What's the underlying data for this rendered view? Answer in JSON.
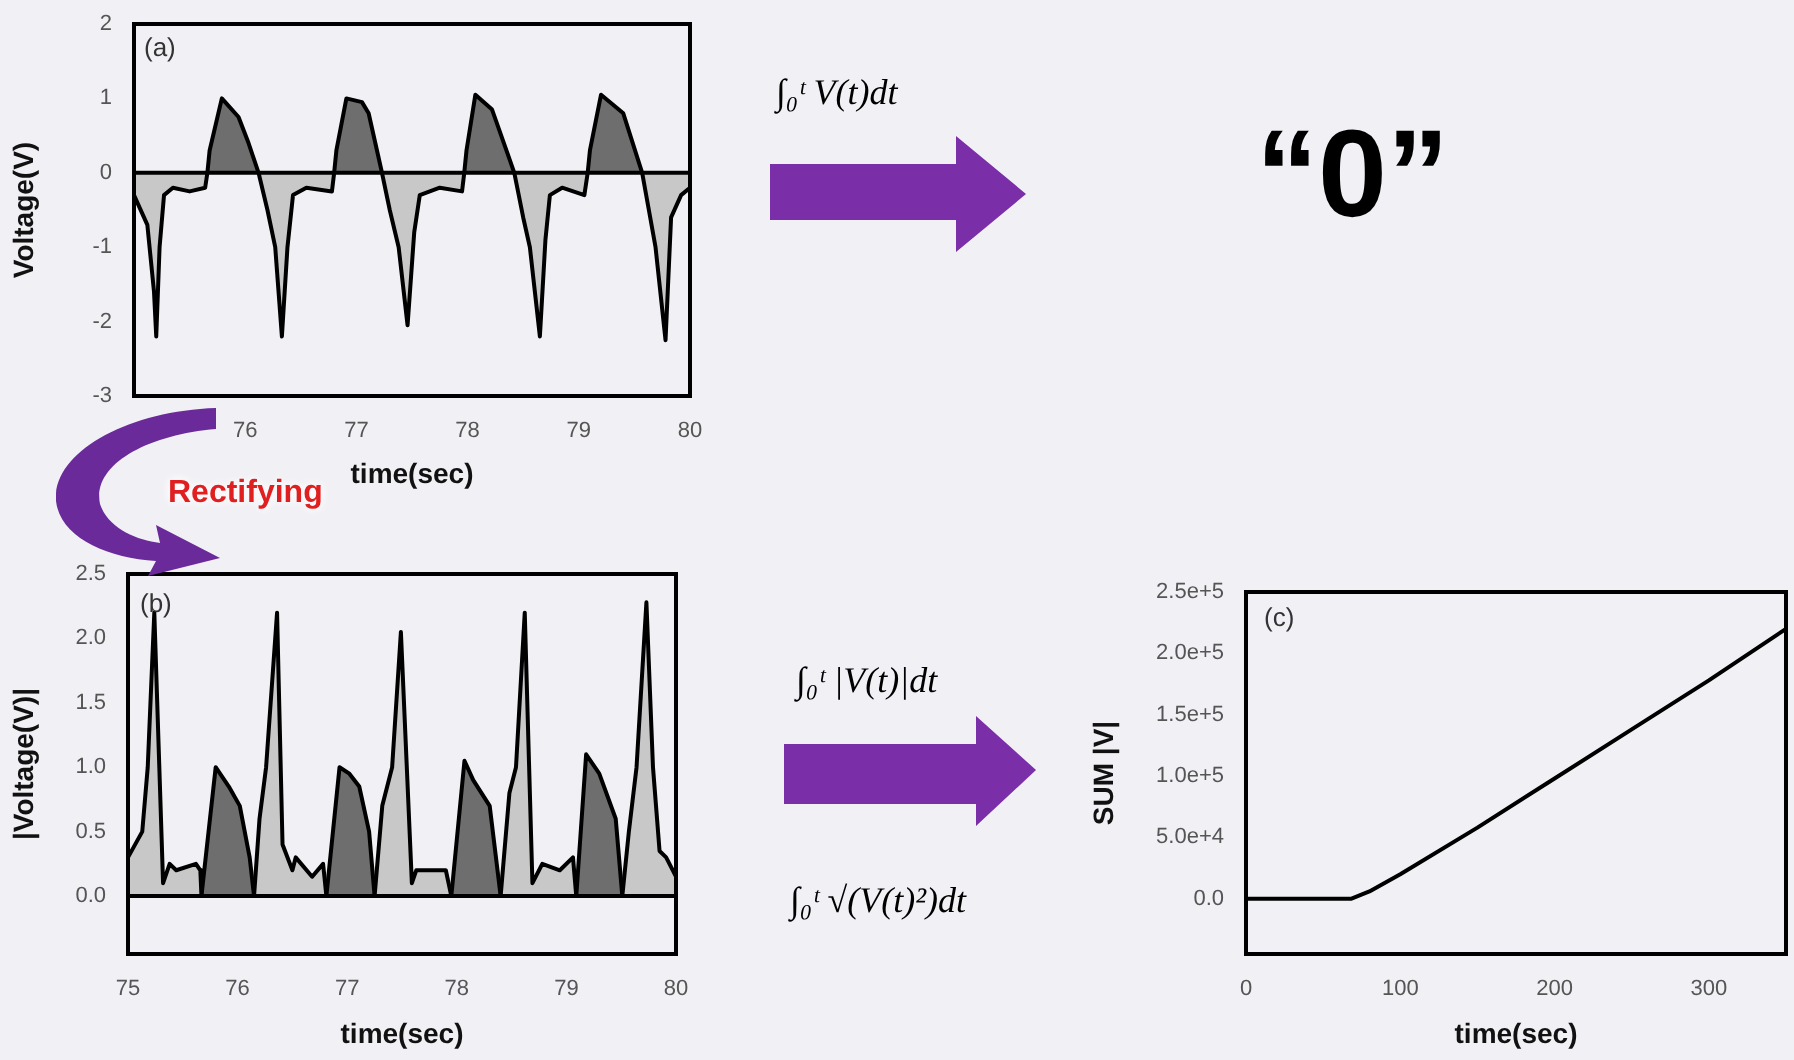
{
  "chart_data": [
    {
      "type": "area",
      "xlabel": "time(sec)",
      "ylabel": "Voltage(V)",
      "xlim": [
        75,
        80
      ],
      "xticks": [
        76,
        77,
        78,
        79,
        80
      ],
      "ylim": [
        -3,
        2
      ],
      "yticks": [
        -3,
        -2,
        -1,
        0,
        1,
        2
      ],
      "ref_lines": [
        {
          "axis": "y",
          "value": 0
        }
      ],
      "annotations": [
        "(a)",
        "∫₀ᵗ V(t)dt",
        "“0”",
        "Rectifying"
      ],
      "series": [
        {
          "color": "#c8c8c8",
          "x": [
            75.0,
            75.12,
            75.18,
            75.2,
            75.23,
            75.27,
            75.35,
            75.5,
            75.64,
            75.66,
            75.9,
            76.12,
            76.2,
            76.27,
            76.33,
            76.38,
            76.43,
            76.55,
            76.78,
            76.8,
            77.0,
            77.23,
            77.3,
            77.38,
            77.46,
            77.52,
            77.57,
            77.75,
            77.95,
            77.97,
            78.2,
            78.42,
            78.5,
            78.56,
            78.65,
            78.7,
            78.74,
            78.85,
            79.05,
            79.08,
            79.3,
            79.57,
            79.63,
            79.69,
            79.78,
            79.83,
            79.92,
            80.0
          ],
          "values": [
            -0.3,
            -0.7,
            -1.6,
            -2.2,
            -1.0,
            -0.3,
            -0.2,
            -0.25,
            -0.2,
            0,
            null,
            0,
            -0.5,
            -1.0,
            -2.2,
            -1.0,
            -0.3,
            -0.2,
            -0.25,
            0,
            null,
            0,
            -0.5,
            -1.0,
            -2.05,
            -0.8,
            -0.3,
            -0.2,
            -0.25,
            0,
            null,
            0,
            -0.6,
            -1.0,
            -2.2,
            -0.9,
            -0.3,
            -0.2,
            -0.3,
            0,
            null,
            0,
            -0.5,
            -1.0,
            -2.25,
            -0.6,
            -0.3,
            -0.2
          ]
        },
        {
          "color": "#6e6e6e",
          "x": [
            75.66,
            75.68,
            75.79,
            75.82,
            75.94,
            76.03,
            76.12,
            76.5,
            76.8,
            76.82,
            76.91,
            77.05,
            77.11,
            77.23,
            77.6,
            77.97,
            77.99,
            78.07,
            78.22,
            78.42,
            78.7,
            79.08,
            79.1,
            79.2,
            79.4,
            79.57
          ],
          "values": [
            0,
            0.3,
            1.0,
            0.95,
            0.75,
            0.4,
            0,
            null,
            0,
            0.3,
            1.0,
            0.95,
            0.8,
            0,
            null,
            0,
            0.3,
            1.05,
            0.85,
            0,
            null,
            0,
            0.3,
            1.05,
            0.8,
            0
          ]
        }
      ]
    },
    {
      "type": "area",
      "xlabel": "time(sec)",
      "ylabel": "|Voltage(V)|",
      "xlim": [
        75,
        80
      ],
      "xticks": [
        75,
        76,
        77,
        78,
        79,
        80
      ],
      "ylim": [
        -0.45,
        2.5
      ],
      "yticks": [
        {
          "value": 0,
          "label": "0.0"
        },
        0.5,
        {
          "value": 1,
          "label": "1.0"
        },
        1.5,
        {
          "value": 2,
          "label": "2.0"
        },
        2.5
      ],
      "ref_lines": [
        {
          "axis": "y",
          "value": 0
        }
      ],
      "annotations": [
        "(b)",
        "∫₀ᵗ |V(t)|dt",
        "∫₀ᵗ √(V(t)²)dt"
      ],
      "series": [
        {
          "color": "#c8c8c8",
          "x": [
            75.0,
            75.13,
            75.18,
            75.24,
            75.32,
            75.38,
            75.44,
            75.62,
            75.66,
            75.67,
            75.9,
            76.15,
            76.2,
            76.26,
            76.36,
            76.41,
            76.5,
            76.53,
            76.68,
            76.78,
            76.81,
            77.0,
            77.25,
            77.32,
            77.41,
            77.49,
            77.59,
            77.63,
            77.9,
            77.95,
            78.2,
            78.4,
            78.48,
            78.54,
            78.62,
            78.69,
            78.78,
            78.94,
            79.06,
            79.09,
            79.3,
            79.51,
            79.57,
            79.64,
            79.73,
            79.79,
            79.85,
            79.91,
            80.0
          ],
          "values": [
            0.3,
            0.5,
            1.0,
            2.2,
            0.1,
            0.25,
            0.2,
            0.25,
            0.2,
            0,
            null,
            0,
            0.6,
            1.0,
            2.2,
            0.4,
            0.2,
            0.3,
            0.15,
            0.25,
            0,
            null,
            0,
            0.7,
            1.0,
            2.05,
            0.1,
            0.2,
            0.2,
            0,
            null,
            0,
            0.8,
            1.0,
            2.2,
            0.1,
            0.25,
            0.2,
            0.3,
            0,
            null,
            0,
            0.5,
            1.0,
            2.28,
            1.0,
            0.35,
            0.3,
            0.15
          ]
        },
        {
          "color": "#6e6e6e",
          "x": [
            75.67,
            75.8,
            75.92,
            76.02,
            76.11,
            76.15,
            76.5,
            76.81,
            76.93,
            77.02,
            77.11,
            77.2,
            77.25,
            77.6,
            77.95,
            78.07,
            78.15,
            78.3,
            78.4,
            78.7,
            79.09,
            79.18,
            79.3,
            79.45,
            79.51
          ],
          "values": [
            0,
            1.0,
            0.85,
            0.7,
            0.3,
            0,
            null,
            0,
            1.0,
            0.95,
            0.85,
            0.5,
            0,
            null,
            0,
            1.05,
            0.9,
            0.7,
            0,
            null,
            0,
            1.1,
            0.95,
            0.6,
            0
          ]
        }
      ]
    },
    {
      "type": "line",
      "xlabel": "time(sec)",
      "ylabel": "SUM |V|",
      "xlim": [
        0,
        350
      ],
      "xticks": [
        0,
        100,
        200,
        300
      ],
      "ylim": [
        -45000,
        250000
      ],
      "yticks": [
        {
          "value": 0,
          "label": "0.0"
        },
        {
          "value": 50000,
          "label": "5.0e+4"
        },
        {
          "value": 100000,
          "label": "1.0e+5"
        },
        {
          "value": 150000,
          "label": "1.5e+5"
        },
        {
          "value": 200000,
          "label": "2.0e+5"
        },
        {
          "value": 250000,
          "label": "2.5e+5"
        }
      ],
      "annotations": [
        "(c)"
      ],
      "series": [
        {
          "color": "#000000",
          "x": [
            0,
            68,
            80,
            100,
            150,
            200,
            250,
            300,
            350
          ],
          "values": [
            0,
            0,
            6000,
            20000,
            58000,
            98000,
            138000,
            178000,
            220000
          ]
        }
      ]
    }
  ]
}
